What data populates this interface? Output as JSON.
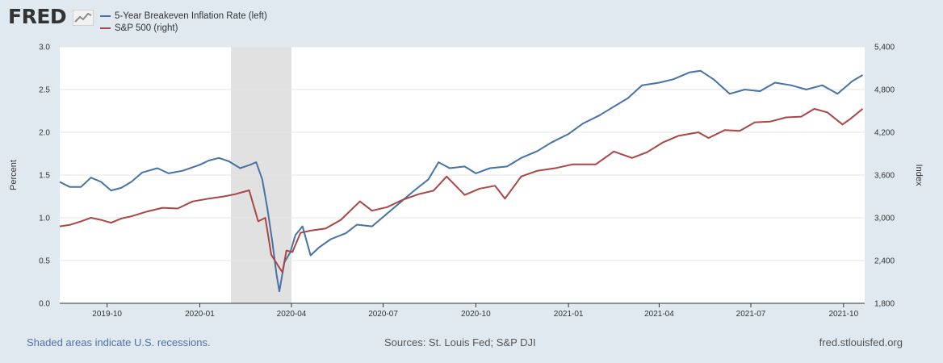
{
  "header": {
    "logo_text": "FRED"
  },
  "chart_data": {
    "type": "line",
    "legend": [
      {
        "name": "5-Year Breakeven Inflation Rate (left)",
        "color": "#4572a7"
      },
      {
        "name": "S&P 500 (right)",
        "color": "#aa4643"
      }
    ],
    "x_range": [
      "2019-08-15",
      "2021-10-22"
    ],
    "x_ticks": [
      {
        "date": "2019-10-01",
        "label": "2019-10"
      },
      {
        "date": "2020-01-01",
        "label": "2020-01"
      },
      {
        "date": "2020-04-01",
        "label": "2020-04"
      },
      {
        "date": "2020-07-01",
        "label": "2020-07"
      },
      {
        "date": "2020-10-01",
        "label": "2020-10"
      },
      {
        "date": "2021-01-01",
        "label": "2021-01"
      },
      {
        "date": "2021-04-01",
        "label": "2021-04"
      },
      {
        "date": "2021-07-01",
        "label": "2021-07"
      },
      {
        "date": "2021-10-01",
        "label": "2021-10"
      }
    ],
    "y_left": {
      "label": "Percent",
      "min": 0,
      "max": 3.0,
      "ticks": [
        "0.0",
        "0.5",
        "1.0",
        "1.5",
        "2.0",
        "2.5",
        "3.0"
      ]
    },
    "y_right": {
      "label": "Index",
      "min": 1800,
      "max": 5400,
      "ticks": [
        "1,800",
        "2,400",
        "3,000",
        "3,600",
        "4,200",
        "4,800",
        "5,400"
      ]
    },
    "recession": {
      "start": "2020-02-01",
      "end": "2020-04-01"
    },
    "series": [
      {
        "name": "5-Year Breakeven Inflation Rate (left)",
        "axis": "left",
        "color": "#4572a7",
        "points": [
          [
            "2019-08-15",
            1.42
          ],
          [
            "2019-08-25",
            1.36
          ],
          [
            "2019-09-05",
            1.36
          ],
          [
            "2019-09-15",
            1.47
          ],
          [
            "2019-09-25",
            1.42
          ],
          [
            "2019-10-05",
            1.32
          ],
          [
            "2019-10-15",
            1.35
          ],
          [
            "2019-10-25",
            1.42
          ],
          [
            "2019-11-05",
            1.53
          ],
          [
            "2019-11-20",
            1.58
          ],
          [
            "2019-12-01",
            1.52
          ],
          [
            "2019-12-15",
            1.55
          ],
          [
            "2020-01-01",
            1.62
          ],
          [
            "2020-01-10",
            1.67
          ],
          [
            "2020-01-20",
            1.7
          ],
          [
            "2020-01-30",
            1.66
          ],
          [
            "2020-02-10",
            1.58
          ],
          [
            "2020-02-20",
            1.62
          ],
          [
            "2020-02-26",
            1.65
          ],
          [
            "2020-03-03",
            1.45
          ],
          [
            "2020-03-08",
            1.12
          ],
          [
            "2020-03-13",
            0.72
          ],
          [
            "2020-03-17",
            0.35
          ],
          [
            "2020-03-20",
            0.14
          ],
          [
            "2020-03-25",
            0.48
          ],
          [
            "2020-03-31",
            0.6
          ],
          [
            "2020-04-05",
            0.8
          ],
          [
            "2020-04-12",
            0.9
          ],
          [
            "2020-04-20",
            0.56
          ],
          [
            "2020-04-28",
            0.65
          ],
          [
            "2020-05-10",
            0.75
          ],
          [
            "2020-05-25",
            0.82
          ],
          [
            "2020-06-05",
            0.92
          ],
          [
            "2020-06-20",
            0.9
          ],
          [
            "2020-07-05",
            1.05
          ],
          [
            "2020-07-20",
            1.2
          ],
          [
            "2020-08-01",
            1.32
          ],
          [
            "2020-08-15",
            1.45
          ],
          [
            "2020-08-25",
            1.65
          ],
          [
            "2020-09-05",
            1.58
          ],
          [
            "2020-09-20",
            1.6
          ],
          [
            "2020-10-01",
            1.52
          ],
          [
            "2020-10-15",
            1.58
          ],
          [
            "2020-11-01",
            1.6
          ],
          [
            "2020-11-15",
            1.7
          ],
          [
            "2020-12-01",
            1.78
          ],
          [
            "2020-12-15",
            1.88
          ],
          [
            "2021-01-01",
            1.98
          ],
          [
            "2021-01-15",
            2.1
          ],
          [
            "2021-02-01",
            2.2
          ],
          [
            "2021-02-15",
            2.3
          ],
          [
            "2021-03-01",
            2.4
          ],
          [
            "2021-03-15",
            2.55
          ],
          [
            "2021-04-01",
            2.58
          ],
          [
            "2021-04-15",
            2.62
          ],
          [
            "2021-05-01",
            2.7
          ],
          [
            "2021-05-12",
            2.72
          ],
          [
            "2021-05-25",
            2.62
          ],
          [
            "2021-06-10",
            2.45
          ],
          [
            "2021-06-25",
            2.5
          ],
          [
            "2021-07-10",
            2.48
          ],
          [
            "2021-07-25",
            2.58
          ],
          [
            "2021-08-10",
            2.55
          ],
          [
            "2021-08-25",
            2.5
          ],
          [
            "2021-09-10",
            2.55
          ],
          [
            "2021-09-25",
            2.45
          ],
          [
            "2021-10-10",
            2.6
          ],
          [
            "2021-10-20",
            2.67
          ]
        ]
      },
      {
        "name": "S&P 500 (right)",
        "axis": "right",
        "color": "#aa4643",
        "points": [
          [
            "2019-08-15",
            2880
          ],
          [
            "2019-08-25",
            2900
          ],
          [
            "2019-09-05",
            2950
          ],
          [
            "2019-09-15",
            3000
          ],
          [
            "2019-09-25",
            2970
          ],
          [
            "2019-10-05",
            2930
          ],
          [
            "2019-10-15",
            2990
          ],
          [
            "2019-10-25",
            3020
          ],
          [
            "2019-11-10",
            3090
          ],
          [
            "2019-11-25",
            3140
          ],
          [
            "2019-12-10",
            3130
          ],
          [
            "2019-12-25",
            3230
          ],
          [
            "2020-01-10",
            3270
          ],
          [
            "2020-01-25",
            3300
          ],
          [
            "2020-02-05",
            3330
          ],
          [
            "2020-02-19",
            3386
          ],
          [
            "2020-02-28",
            2950
          ],
          [
            "2020-03-06",
            3000
          ],
          [
            "2020-03-12",
            2480
          ],
          [
            "2020-03-16",
            2390
          ],
          [
            "2020-03-20",
            2300
          ],
          [
            "2020-03-23",
            2237
          ],
          [
            "2020-03-27",
            2540
          ],
          [
            "2020-04-02",
            2520
          ],
          [
            "2020-04-10",
            2790
          ],
          [
            "2020-04-20",
            2820
          ],
          [
            "2020-05-05",
            2850
          ],
          [
            "2020-05-20",
            2970
          ],
          [
            "2020-06-08",
            3230
          ],
          [
            "2020-06-20",
            3100
          ],
          [
            "2020-07-05",
            3150
          ],
          [
            "2020-07-20",
            3250
          ],
          [
            "2020-08-05",
            3330
          ],
          [
            "2020-08-20",
            3380
          ],
          [
            "2020-09-02",
            3580
          ],
          [
            "2020-09-20",
            3320
          ],
          [
            "2020-10-05",
            3410
          ],
          [
            "2020-10-20",
            3450
          ],
          [
            "2020-10-30",
            3270
          ],
          [
            "2020-11-15",
            3580
          ],
          [
            "2020-12-01",
            3660
          ],
          [
            "2020-12-20",
            3700
          ],
          [
            "2021-01-05",
            3750
          ],
          [
            "2021-01-28",
            3750
          ],
          [
            "2021-02-15",
            3930
          ],
          [
            "2021-03-05",
            3840
          ],
          [
            "2021-03-20",
            3920
          ],
          [
            "2021-04-05",
            4060
          ],
          [
            "2021-04-20",
            4150
          ],
          [
            "2021-05-10",
            4200
          ],
          [
            "2021-05-20",
            4120
          ],
          [
            "2021-06-05",
            4230
          ],
          [
            "2021-06-20",
            4220
          ],
          [
            "2021-07-05",
            4340
          ],
          [
            "2021-07-20",
            4350
          ],
          [
            "2021-08-05",
            4410
          ],
          [
            "2021-08-20",
            4420
          ],
          [
            "2021-09-02",
            4530
          ],
          [
            "2021-09-15",
            4480
          ],
          [
            "2021-09-30",
            4310
          ],
          [
            "2021-10-08",
            4390
          ],
          [
            "2021-10-20",
            4530
          ]
        ]
      }
    ]
  },
  "footer": {
    "note": "Shaded areas indicate U.S. recessions.",
    "sources": "Sources: St. Louis Fed; S&P DJI",
    "url": "fred.stlouisfed.org"
  }
}
